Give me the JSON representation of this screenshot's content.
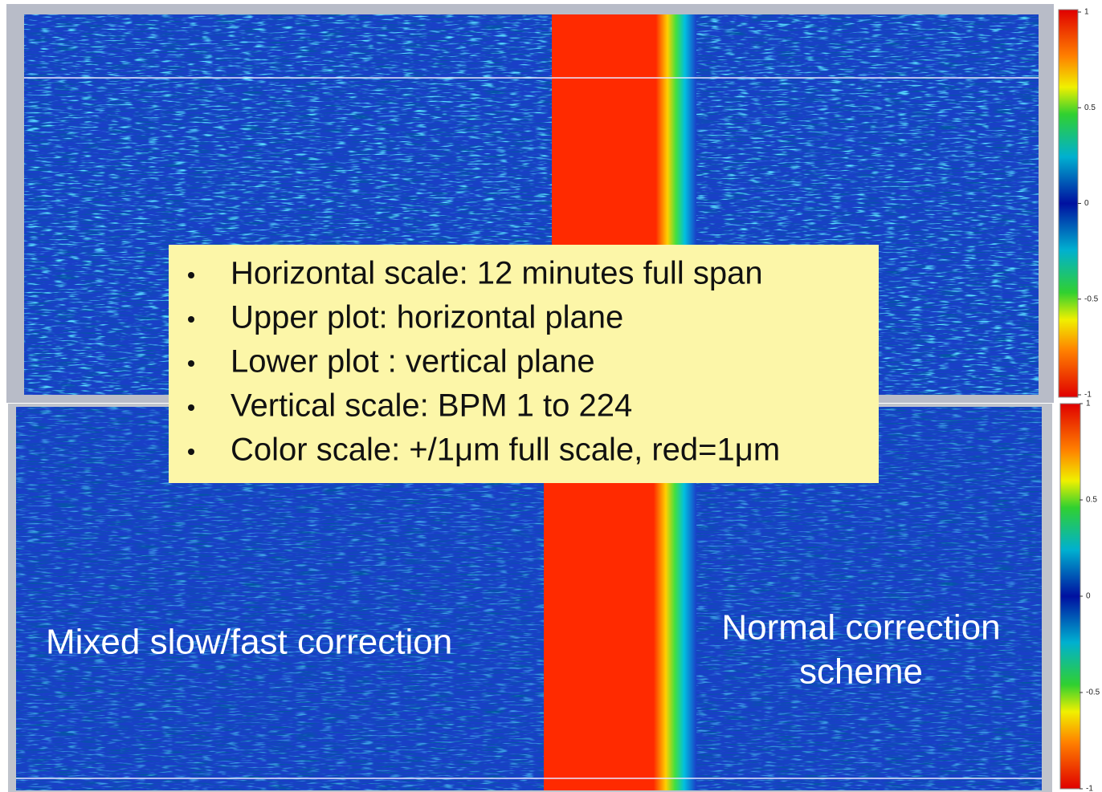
{
  "upper_plot": {
    "colorbar_ticks": [
      "1",
      "0.5",
      "0",
      "-0.5",
      "-1"
    ]
  },
  "lower_plot": {
    "colorbar_ticks": [
      "1",
      "0.5",
      "0",
      "-0.5",
      "-1"
    ]
  },
  "info_box": {
    "bullets": [
      "Horizontal scale: 12 minutes full  span",
      "Upper plot: horizontal plane",
      "Lower plot : vertical plane",
      "Vertical scale: BPM 1 to 224",
      "Color scale: +/1μm full scale, red=1μm"
    ]
  },
  "annotations": {
    "left": "Mixed slow/fast correction",
    "right": [
      "Normal correction",
      "scheme"
    ]
  }
}
